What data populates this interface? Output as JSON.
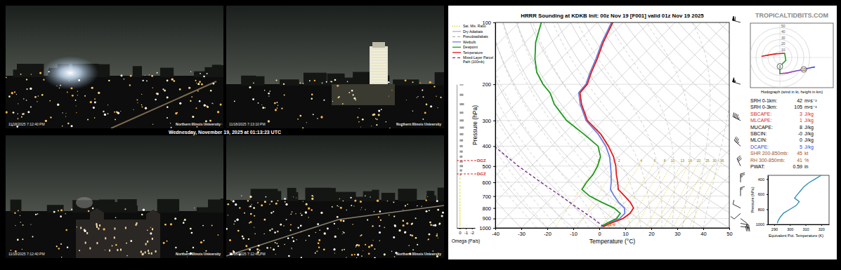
{
  "webcams": {
    "caption": "Wednesday, November 19, 2025 at 01:13:23 UTC",
    "cameras": [
      {
        "timestamp": "11/18/2025 7:12:40 PM",
        "logo": "Northern Illinois University"
      },
      {
        "timestamp": "11/18/2025 7:13:10 PM",
        "logo": "Northern Illinois University"
      },
      {
        "timestamp": "11/18/2025 7:12:40 PM",
        "logo": "Northern Illinois University"
      },
      {
        "timestamp": "11/18/2025 7:12:46 PM",
        "logo": "Northern Illinois University"
      }
    ]
  },
  "site": "TROPICALTIDBITS.COM",
  "chart_data": [
    {
      "type": "skew-t",
      "title": "HRRR Sounding at KDKB Init: 00z Nov 19 [F001] valid 01z Nov 19 2025",
      "x_label": "Temperature (°C)",
      "y_label": "Pressure (hPa)",
      "xlim": [
        -40,
        50
      ],
      "xticks": [
        -40,
        -30,
        -20,
        -10,
        0,
        10,
        20,
        30,
        40,
        50
      ],
      "ylim": [
        1000,
        100
      ],
      "yticks": [
        1000,
        900,
        800,
        700,
        600,
        500,
        400,
        300,
        200,
        100
      ],
      "log": "y",
      "grid": true,
      "legend": "left",
      "reference_lines": [
        {
          "name": "Sat. Mix. Ratio",
          "color": "#c9b800",
          "line_style": "dotted",
          "values": [
            1,
            2,
            4,
            6,
            8,
            10,
            13,
            16,
            20,
            25,
            30,
            36
          ]
        },
        {
          "name": "Dry Adiabats",
          "color": "#b4b4b4",
          "line_style": "solid"
        },
        {
          "name": "Pseudoadiabats",
          "color": "#b4b4b4",
          "line_style": "dashed"
        }
      ],
      "series": [
        {
          "name": "Wetbulb",
          "color": "#6f7fe0",
          "line_style": "solid",
          "pressure": [
            985,
            950,
            925,
            900,
            850,
            800,
            750,
            700,
            650,
            600,
            550,
            500,
            450,
            400,
            350,
            300,
            250,
            220,
            200,
            175,
            150,
            125,
            100
          ],
          "temperature": [
            0.6,
            1.7,
            3,
            4.2,
            4.2,
            2,
            -2.5,
            -6.5,
            -10.5,
            -13,
            -16,
            -19.5,
            -23.5,
            -29,
            -36.5,
            -46.5,
            -55,
            -60,
            -60.5,
            -63.5,
            -66.5,
            -70.5,
            -74.5
          ]
        },
        {
          "name": "Dewpoint",
          "color": "#1f9a1f",
          "line_style": "solid",
          "pressure": [
            985,
            950,
            925,
            900,
            850,
            800,
            750,
            700,
            650,
            600,
            550,
            500,
            450,
            400,
            350,
            300,
            250,
            220,
            200,
            175,
            150,
            125,
            100
          ],
          "temperature": [
            0.2,
            1,
            2,
            3,
            2.5,
            -2,
            -9,
            -16,
            -21.5,
            -22.5,
            -23,
            -24.5,
            -27,
            -32,
            -42,
            -54,
            -65,
            -71,
            -77,
            -84,
            -90,
            -96,
            -101.5
          ]
        },
        {
          "name": "Temperature",
          "color": "#e31a1c",
          "line_style": "solid",
          "pressure": [
            985,
            950,
            925,
            900,
            850,
            800,
            750,
            700,
            650,
            600,
            550,
            500,
            450,
            400,
            350,
            300,
            250,
            220,
            200,
            175,
            150,
            125,
            100
          ],
          "temperature": [
            1.1,
            2.5,
            4,
            5.5,
            6.2,
            5.5,
            2,
            -2.5,
            -7.5,
            -10.5,
            -14,
            -17.5,
            -22,
            -28,
            -35.5,
            -46,
            -54.5,
            -59.5,
            -60,
            -63,
            -66,
            -70,
            -74
          ]
        },
        {
          "name": "Mixed-Layer Parcel Path (100mb)",
          "color": "#7b2d8e",
          "line_style": "dashed",
          "pressure": [
            985,
            900,
            800,
            700,
            600,
            500,
            450,
            400
          ],
          "temperature": [
            1.1,
            -6,
            -16,
            -27,
            -40,
            -55,
            -63,
            -72
          ]
        }
      ],
      "annotations": [
        "34°F"
      ],
      "winds": {
        "pressure": [
          985,
          950,
          900,
          850,
          800,
          700,
          600,
          500,
          400,
          300,
          200,
          100
        ],
        "u": [
          -30,
          -20,
          -8,
          8,
          10,
          0,
          0,
          12,
          25,
          40,
          52,
          58
        ],
        "v": [
          2,
          4,
          6,
          7,
          -5,
          -15,
          -27,
          -26,
          -23,
          -20,
          -17,
          -16
        ]
      }
    },
    {
      "type": "bar",
      "orientation": "horizontal",
      "x_label": "Omega (Pa/s)",
      "xlim": [
        0.5,
        -2.5
      ],
      "xticks": [
        0,
        -1,
        -2
      ],
      "ylim": [
        1000,
        200
      ],
      "log": "y",
      "tick_labels": "x",
      "pressure": [
        200,
        225,
        250,
        275,
        300,
        325,
        350,
        375,
        400,
        425,
        450,
        475,
        500,
        525,
        550,
        575,
        600,
        625,
        650,
        675,
        700,
        725,
        750,
        775,
        800,
        825,
        850,
        875,
        900,
        925,
        950,
        975
      ],
      "values": [
        -0.6,
        -0.6,
        -0.7,
        -0.6,
        -0.65,
        -0.7,
        -0.6,
        -0.55,
        -0.5,
        -0.5,
        -0.45,
        -0.5,
        -0.55,
        -0.4,
        -0.25,
        -0.1,
        -0.1,
        -0.1,
        -0.1,
        -0.1,
        -0.1,
        -0.1,
        -0.1,
        -0.1,
        -0.1,
        -0.1,
        -0.1,
        -0.1,
        -0.1,
        -0.1,
        -0.1,
        -0.1
      ],
      "colors": [
        "#9a9a9a",
        "#9a9a9a",
        "#9a9a9a",
        "#9a9a9a",
        "#9a9a9a",
        "#9a9a9a",
        "#9a9a9a",
        "#9a9a9a",
        "#9a9a9a",
        "#9a9a9a",
        "#9a9a9a",
        "#9a9a9a",
        "#9a9a9a",
        "#9a9a9a",
        "#9a9a9a",
        "#e6d800",
        "#e6d800",
        "#e6d800",
        "#e6d800",
        "#e6d800",
        "#e6d800",
        "#e6d800",
        "#e6d800",
        "#e6d800",
        "#e6d800",
        "#e6d800",
        "#e6d800",
        "#e6d800",
        "#e6d800",
        "#e6d800",
        "#e6d800",
        "#e6d800"
      ],
      "dgz": {
        "label": "DGZ",
        "pressure": [
          470,
          546
        ]
      }
    },
    {
      "type": "hodograph",
      "title": "Hodograph (wind in kt, height in km)",
      "rings": [
        10,
        20,
        30,
        40,
        50
      ],
      "colors": [
        "#e31a1c",
        "#e31a1c",
        "#e31a1c",
        "#2ca02c",
        "#2ca02c",
        "#2ca02c",
        "#b03aa0",
        "#9a3fb5",
        "#7a45c0",
        "#5a4bcc",
        "#3b4fd6"
      ],
      "height_markers": [
        {
          "label": "3",
          "pressure": 700
        },
        {
          "label": "10",
          "pressure": 300
        }
      ]
    },
    {
      "type": "line",
      "x_label": "Equivalent Pot. Temperature (K)",
      "y_label": "Pressure (hPa)",
      "xlim": [
        286,
        325
      ],
      "xticks": [
        290,
        300,
        310,
        320
      ],
      "ylim": [
        1000,
        350
      ],
      "yticks": [
        1000,
        800,
        600,
        400
      ],
      "series": [
        {
          "color": "#2b8cb0",
          "x": [
            292,
            292.5,
            294,
            296,
            300,
            304,
            306,
            303,
            305,
            307,
            309,
            312,
            316,
            320
          ],
          "y": [
            985,
            950,
            900,
            850,
            800,
            750,
            700,
            650,
            600,
            550,
            500,
            450,
            400,
            350
          ]
        }
      ]
    }
  ],
  "indices": [
    {
      "label": "SRH 0-1km:",
      "value": 42,
      "unit": "m²s⁻²",
      "color": "#000000"
    },
    {
      "label": "SRH 0-3km:",
      "value": 105,
      "unit": "m²s⁻²",
      "color": "#000000"
    },
    {
      "label": "SBCAPE:",
      "value": 3,
      "unit": "J/kg",
      "color": "#d62728"
    },
    {
      "label": "MLCAPE:",
      "value": 1,
      "unit": "J/kg",
      "color": "#d62728"
    },
    {
      "label": "MUCAPE:",
      "value": 8,
      "unit": "J/kg",
      "color": "#000000"
    },
    {
      "label": "SBCIN:",
      "value": 0,
      "value_label": "-0",
      "unit": "J/kg",
      "color": "#000000"
    },
    {
      "label": "MLCIN:",
      "value": 0,
      "unit": "J/kg",
      "color": "#000000"
    },
    {
      "label": "DCAPE:",
      "value": 5,
      "unit": "J/kg",
      "color": "#1f4fd6"
    },
    {
      "label": "SHR 200-850mb:",
      "value": 45,
      "unit": "kt",
      "color": "#a0522d"
    },
    {
      "label": "RH 300-850mb:",
      "value": 41,
      "unit": "%",
      "color": "#a0522d"
    },
    {
      "label": "PWAT:",
      "value": 0.59,
      "unit": "in",
      "color": "#000000"
    }
  ]
}
